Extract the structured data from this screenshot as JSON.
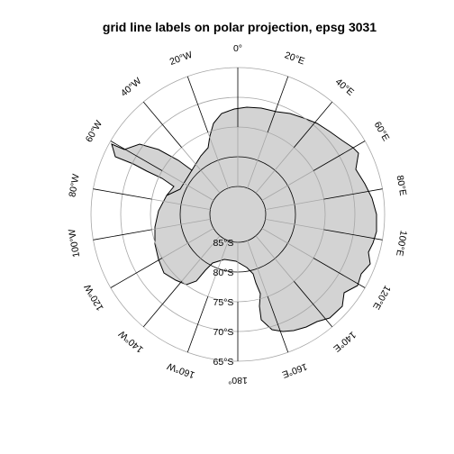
{
  "title": "grid line labels on polar projection, epsg 3031",
  "colors": {
    "land": "#d3d3d3",
    "coast": "#000000",
    "inner_grid": "#a6a6a6",
    "outer_grid": "#000000"
  },
  "longitude_labels": [
    {
      "lon": 0,
      "text": "0°"
    },
    {
      "lon": 20,
      "text": "20°E"
    },
    {
      "lon": 40,
      "text": "40°E"
    },
    {
      "lon": 60,
      "text": "60°E"
    },
    {
      "lon": 80,
      "text": "80°E"
    },
    {
      "lon": 100,
      "text": "100°E"
    },
    {
      "lon": 120,
      "text": "120°E"
    },
    {
      "lon": 140,
      "text": "140°E"
    },
    {
      "lon": 160,
      "text": "160°E"
    },
    {
      "lon": 180,
      "text": "180°"
    },
    {
      "lon": -160,
      "text": "160°W"
    },
    {
      "lon": -140,
      "text": "140°W"
    },
    {
      "lon": -120,
      "text": "120°W"
    },
    {
      "lon": -100,
      "text": "100°W"
    },
    {
      "lon": -80,
      "text": "80°W"
    },
    {
      "lon": -60,
      "text": "60°W"
    },
    {
      "lon": -40,
      "text": "40°W"
    },
    {
      "lon": -20,
      "text": "20°W"
    }
  ],
  "latitude_labels": [
    {
      "lat": -85,
      "text": "85°S"
    },
    {
      "lat": -80,
      "text": "80°S"
    },
    {
      "lat": -75,
      "text": "75°S"
    },
    {
      "lat": -70,
      "text": "70°S"
    },
    {
      "lat": -65,
      "text": "65°S"
    }
  ]
}
